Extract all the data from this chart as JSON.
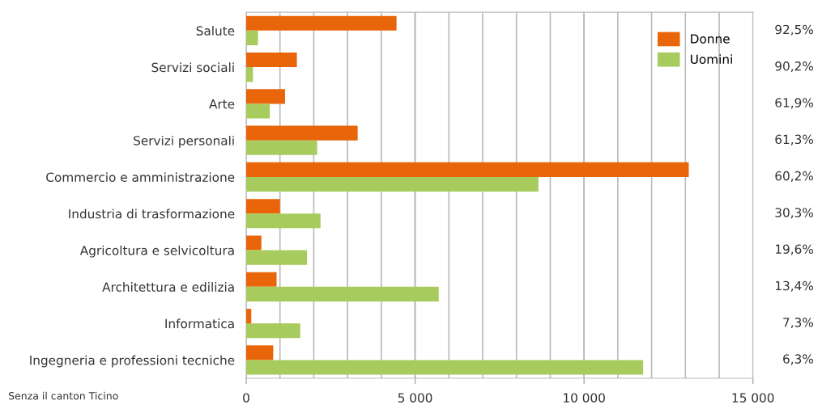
{
  "chart_data": {
    "type": "bar",
    "orientation": "horizontal",
    "categories": [
      "Salute",
      "Servizi sociali",
      "Arte",
      "Servizi personali",
      "Commercio e amministrazione",
      "Industria di trasformazione",
      "Agricoltura e selvicoltura",
      "Architettura e edilizia",
      "Informatica",
      "Ingegneria e professioni tecniche"
    ],
    "series": [
      {
        "name": "Donne",
        "color": "#e8650a",
        "values": [
          4450,
          1500,
          1150,
          3300,
          13100,
          1000,
          450,
          900,
          150,
          800
        ]
      },
      {
        "name": "Uomini",
        "color": "#a8cb5e",
        "values": [
          350,
          200,
          700,
          2100,
          8650,
          2200,
          1800,
          5700,
          1600,
          11750
        ]
      }
    ],
    "xlim": [
      0,
      15000
    ],
    "xticks": [
      {
        "value": 0,
        "label": "0"
      },
      {
        "value": 5000,
        "label": "5 000"
      },
      {
        "value": 10000,
        "label": "10 000"
      },
      {
        "value": 15000,
        "label": "15 000"
      }
    ],
    "grid": "x",
    "legend": "top right",
    "annotations": [
      "92,5%",
      "90,2%",
      "61,9%",
      "61,3%",
      "60,2%",
      "30,3%",
      "19,6%",
      "13,4%",
      "7,3%",
      "6,3%",
      "Senza il canton Ticino"
    ]
  }
}
